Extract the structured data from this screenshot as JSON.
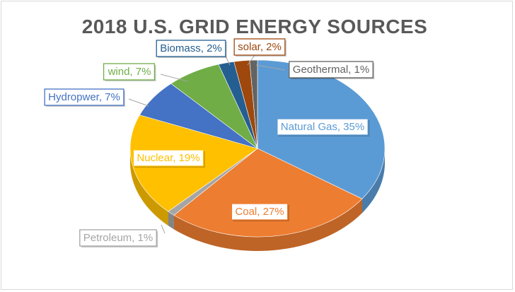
{
  "chart_data": {
    "type": "pie",
    "title": "2018 U.S. GRID ENERGY SOURCES",
    "labels": [
      "Natural Gas",
      "Coal",
      "Petroleum",
      "Nuclear",
      "Hydropwer",
      "wind",
      "Biomass",
      "solar",
      "Geothermal"
    ],
    "values": [
      35,
      27,
      1,
      19,
      7,
      7,
      2,
      2,
      1
    ],
    "data_labels": [
      "Natural Gas, 35%",
      "Coal, 27%",
      "Petroleum, 1%",
      "Nuclear, 19%",
      "Hydropwer, 7%",
      "wind, 7%",
      "Biomass, 2%",
      "solar, 2%",
      "Geothermal, 1%"
    ],
    "colors": [
      "#5b9bd5",
      "#ed7d31",
      "#a5a5a5",
      "#ffc000",
      "#4472c4",
      "#70ad47",
      "#255e91",
      "#9e480e",
      "#636363"
    ],
    "label_colors": [
      "#5b9bd5",
      "#ed7d31",
      "#a5a5a5",
      "#ffc000",
      "#4472c4",
      "#70ad47",
      "#255e91",
      "#9e480e",
      "#636363"
    ],
    "style": "3d-pie",
    "legend": "none"
  }
}
